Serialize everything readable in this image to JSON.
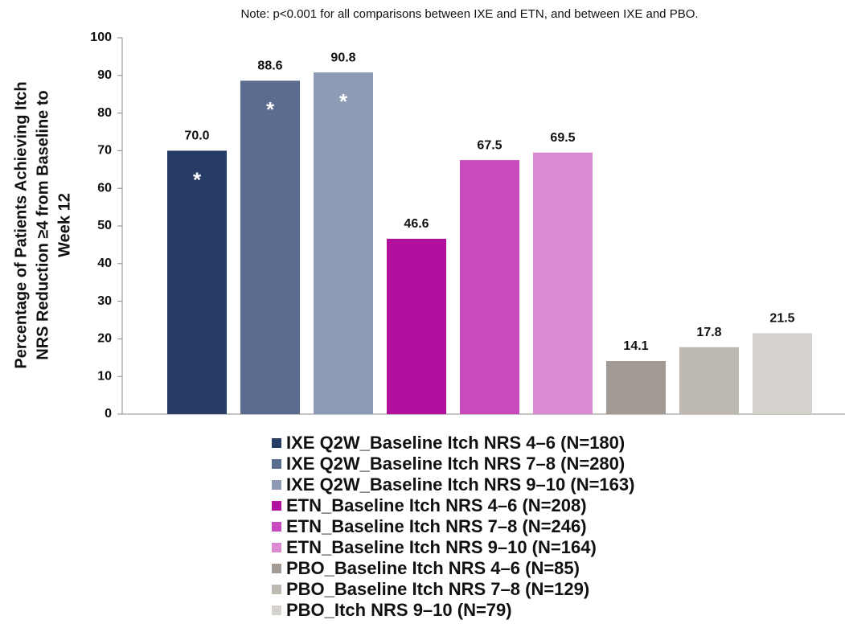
{
  "chart_data": {
    "type": "bar",
    "title": "Note: p<0.001 for all comparisons between IXE and ETN, and between IXE and PBO.",
    "ylabel": [
      "Percentage of Patients Achieving Itch",
      "NRS Reduction ≥4 from Baseline to",
      "Week 12"
    ],
    "categories": [
      null
    ],
    "ylim": [
      0,
      100
    ],
    "yticks": [
      0,
      10,
      20,
      30,
      40,
      50,
      60,
      70,
      80,
      90,
      100
    ],
    "series": [
      {
        "name": "IXE Q2W_Baseline Itch NRS 4–6 (N=180)",
        "color": "#263c66",
        "values": [
          70.0
        ],
        "value_labels": [
          "70.0"
        ],
        "annotation": "*"
      },
      {
        "name": "IXE Q2W_Baseline Itch NRS 7–8 (N=280)",
        "color": "#5a6c8f",
        "values": [
          88.6
        ],
        "annotation": "*"
      },
      {
        "name": "IXE Q2W_Baseline Itch NRS 9–10 (N=163)",
        "color": "#8e9bb4",
        "values": [
          90.8
        ],
        "annotation": "*"
      },
      {
        "name": "ETN_Baseline Itch NRS 4–6 (N=208)",
        "color": "#b10f9e",
        "values": [
          46.6
        ]
      },
      {
        "name": "ETN_Baseline Itch NRS 7–8 (N=246)",
        "color": "#c94abd",
        "values": [
          67.5
        ]
      },
      {
        "name": "ETN_Baseline Itch NRS 9–10 (N=164)",
        "color": "#d98ad0",
        "values": [
          69.5
        ]
      },
      {
        "name": "PBO_Baseline Itch NRS 4–6 (N=85)",
        "color": "#a29a95",
        "values": [
          14.1
        ]
      },
      {
        "name": "PBO_Baseline Itch NRS 7–8 (N=129)",
        "color": "#bfb9b4",
        "values": [
          17.8
        ]
      },
      {
        "name": "PBO_Itch NRS 9–10 (N=79)",
        "color": "#d5d2ce",
        "values": [
          21.5
        ]
      }
    ]
  }
}
